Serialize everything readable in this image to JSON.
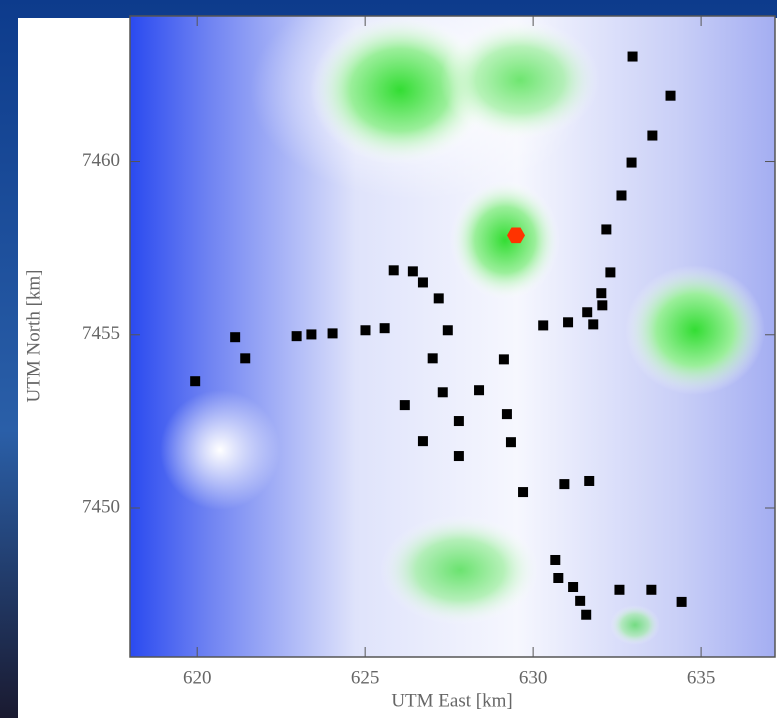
{
  "chart_data": {
    "type": "scatter",
    "xlabel": "UTM East [km]",
    "ylabel": "UTM North [km]",
    "xlim": [
      618,
      637.2
    ],
    "ylim": [
      7445.7,
      7464.2
    ],
    "xticks": [
      620,
      625,
      630,
      635
    ],
    "yticks": [
      7450,
      7455,
      7460
    ],
    "series": [
      {
        "color": "#000000",
        "marker": "square",
        "x": [
          632.96,
          634.09,
          633.55,
          632.93,
          632.63,
          632.18,
          632.3,
          632.03,
          632.06,
          631.61,
          631.79,
          631.04,
          630.3,
          625.85,
          626.42,
          626.72,
          627.19,
          627.46,
          625.58,
          625.01,
          624.03,
          623.4,
          622.96,
          621.13,
          621.43,
          619.94,
          627.01,
          627.31,
          628.39,
          629.13,
          626.18,
          627.79,
          626.72,
          627.79,
          629.22,
          629.34,
          629.7,
          630.93,
          631.67,
          630.66,
          630.75,
          631.19,
          631.4,
          631.58,
          632.57,
          633.52,
          634.42
        ],
        "values": [
          7463.03,
          7461.9,
          7460.75,
          7459.97,
          7459.02,
          7458.04,
          7456.8,
          7456.2,
          7455.85,
          7455.65,
          7455.3,
          7455.36,
          7455.27,
          7456.86,
          7456.83,
          7456.51,
          7456.05,
          7455.13,
          7455.19,
          7455.13,
          7455.04,
          7455.01,
          7454.96,
          7454.93,
          7454.32,
          7453.66,
          7454.32,
          7453.34,
          7453.4,
          7454.29,
          7452.97,
          7452.51,
          7451.93,
          7451.5,
          7452.71,
          7451.9,
          7450.46,
          7450.69,
          7450.78,
          7448.5,
          7447.98,
          7447.72,
          7447.32,
          7446.92,
          7447.64,
          7447.64,
          7447.29
        ]
      },
      {
        "color": "#ff3300",
        "marker": "hexagon",
        "x": [
          629.49
        ],
        "values": [
          7457.87
        ]
      }
    ]
  }
}
